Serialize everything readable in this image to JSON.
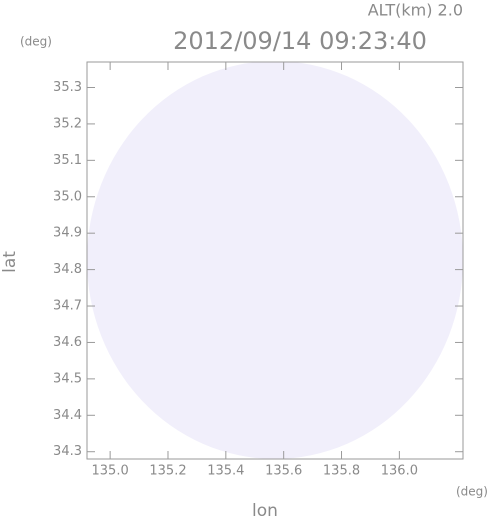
{
  "chart_data": {
    "type": "image",
    "title": "2012/09/14 09:23:40",
    "altitude_label": "ALT(km) 2.0",
    "x_label": "lon",
    "y_label": "lat",
    "x_unit": "(deg)",
    "y_unit": "(deg)",
    "xlim": [
      134.92,
      136.22
    ],
    "ylim": [
      34.28,
      35.37
    ],
    "xticks": [
      {
        "value": 135.0,
        "label": "135.0"
      },
      135.2,
      135.4,
      135.6,
      135.8,
      {
        "value": 136.0,
        "label": "136.0"
      }
    ],
    "yticks": [
      34.3,
      34.4,
      34.5,
      34.6,
      34.7,
      34.8,
      34.9,
      {
        "value": 35.0,
        "label": "35.0"
      },
      35.1,
      35.2,
      35.3
    ],
    "color": "#f1effb"
  }
}
